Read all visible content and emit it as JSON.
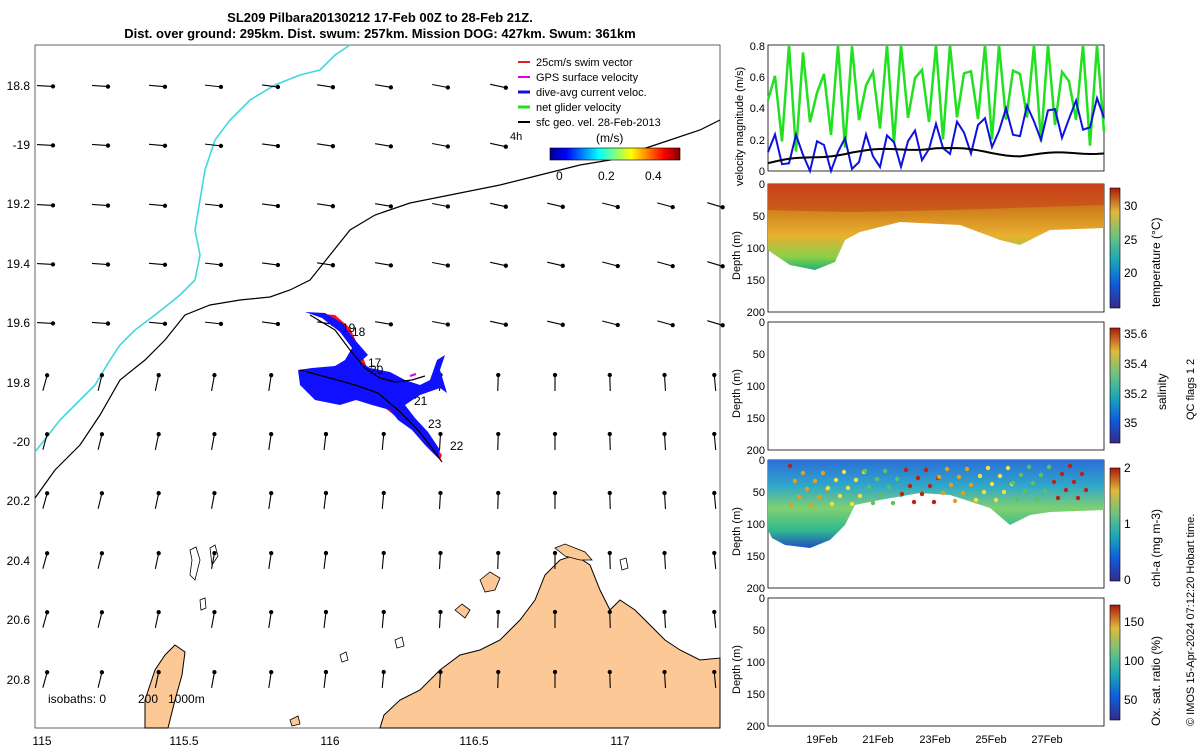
{
  "title": {
    "line1": "SL209 Pilbara20130212 17-Feb 00Z to 28-Feb 21Z.",
    "line2": "Dist. over ground: 295km. Dist. swum: 257km. Mission DOG: 427km. Swum: 361km"
  },
  "map": {
    "lat_ticks": [
      "18.8",
      "-19",
      "19.2",
      "19.4",
      "19.6",
      "19.8",
      "-20",
      "20.2",
      "20.4",
      "20.6",
      "20.8"
    ],
    "lon_ticks": [
      "115",
      "115.5",
      "116",
      "116.5",
      "117"
    ],
    "isobaths_label": "isobaths: 0",
    "isobaths_values": [
      "200",
      "1000m"
    ],
    "legend": [
      {
        "label": "25cm/s swim vector",
        "color": "#e02020"
      },
      {
        "label": "GPS surface velocity",
        "color": "#e000e0"
      },
      {
        "label": "dive-avg current veloc.",
        "color": "#1010e0"
      },
      {
        "label": "net glider velocity",
        "color": "#20e020"
      },
      {
        "label": "sfc geo. vel. 28-Feb-2013",
        "color": "#000000"
      }
    ],
    "scale_label": "4h",
    "colorbar": {
      "unit": "(m/s)",
      "ticks": [
        "0",
        "0.2",
        "0.4"
      ],
      "min": 0,
      "max": 0.5
    },
    "day_labels": [
      "19",
      "18",
      "17",
      "20",
      "21",
      "23",
      "22"
    ],
    "colors": {
      "land": "#fcc996",
      "coast": "#000000",
      "isobath_200": "#000000",
      "isobath_1000": "#40d8e0",
      "track_blue": "#1010ff",
      "track_red": "#ff1010"
    }
  },
  "panels": {
    "velocity": {
      "ylabel": "velocity magnitude (m/s)",
      "yticks": [
        "0",
        "0.2",
        "0.4",
        "0.6",
        "0.8"
      ],
      "ylim": [
        0,
        0.8
      ]
    },
    "temperature": {
      "ylabel": "Depth (m)",
      "cbar_label": "temperature (°C)",
      "yticks": [
        "0",
        "50",
        "100",
        "150",
        "200"
      ],
      "cbar_ticks": [
        "30",
        "25",
        "20"
      ],
      "cbar_range": [
        15,
        33
      ]
    },
    "salinity": {
      "ylabel": "Depth (m)",
      "cbar_label": "salinity",
      "yticks": [
        "0",
        "50",
        "100",
        "150",
        "200"
      ],
      "cbar_ticks": [
        "35.6",
        "35.4",
        "35.2",
        "35"
      ],
      "cbar_range": [
        34.9,
        35.65
      ]
    },
    "chla": {
      "ylabel": "Depth (m)",
      "cbar_label": "chl-a (mg m-3)",
      "yticks": [
        "0",
        "50",
        "100",
        "150",
        "200"
      ],
      "cbar_ticks": [
        "2",
        "1",
        "0"
      ],
      "cbar_range": [
        0,
        2
      ]
    },
    "oxygen": {
      "ylabel": "Depth (m)",
      "cbar_label": "Ox. sat. ratio (%)",
      "yticks": [
        "0",
        "50",
        "100",
        "150",
        "200"
      ],
      "cbar_ticks": [
        "150",
        "100",
        "50"
      ],
      "cbar_range": [
        25,
        175
      ]
    },
    "time_ticks": [
      "19Feb",
      "21Feb",
      "23Feb",
      "25Feb",
      "27Feb"
    ]
  },
  "side_notes": {
    "qc": "QC flags 1  2",
    "copyright": "© IMOS 15-Apr-2024 07:12:20 Hobart time."
  },
  "chart_data": [
    {
      "type": "line",
      "title": "",
      "ylabel": "velocity magnitude (m/s)",
      "ylim": [
        0,
        0.8
      ],
      "x": [
        "19Feb",
        "21Feb",
        "23Feb",
        "25Feb",
        "27Feb"
      ],
      "series": [
        {
          "name": "net glider velocity",
          "color": "#20e020",
          "values": [
            0.45,
            0.5,
            0.55,
            0.55,
            0.5
          ]
        },
        {
          "name": "dive-avg current veloc.",
          "color": "#1010e0",
          "values": [
            0.12,
            0.1,
            0.18,
            0.3,
            0.35
          ]
        },
        {
          "name": "sfc geo. vel. 28-Feb-2013",
          "color": "#000000",
          "values": [
            0.05,
            0.12,
            0.15,
            0.1,
            0.12
          ]
        }
      ]
    },
    {
      "type": "heatmap",
      "ylabel": "Depth (m)",
      "cbar_label": "temperature (°C)",
      "ylim": [
        200,
        0
      ],
      "cbar_range": [
        15,
        33
      ]
    },
    {
      "type": "heatmap",
      "ylabel": "Depth (m)",
      "cbar_label": "salinity",
      "ylim": [
        200,
        0
      ],
      "cbar_range": [
        34.9,
        35.65
      ]
    },
    {
      "type": "heatmap",
      "ylabel": "Depth (m)",
      "cbar_label": "chl-a (mg m-3)",
      "ylim": [
        200,
        0
      ],
      "cbar_range": [
        0,
        2
      ]
    },
    {
      "type": "heatmap",
      "ylabel": "Depth (m)",
      "cbar_label": "Ox. sat. ratio (%)",
      "ylim": [
        200,
        0
      ],
      "cbar_range": [
        25,
        175
      ]
    }
  ]
}
